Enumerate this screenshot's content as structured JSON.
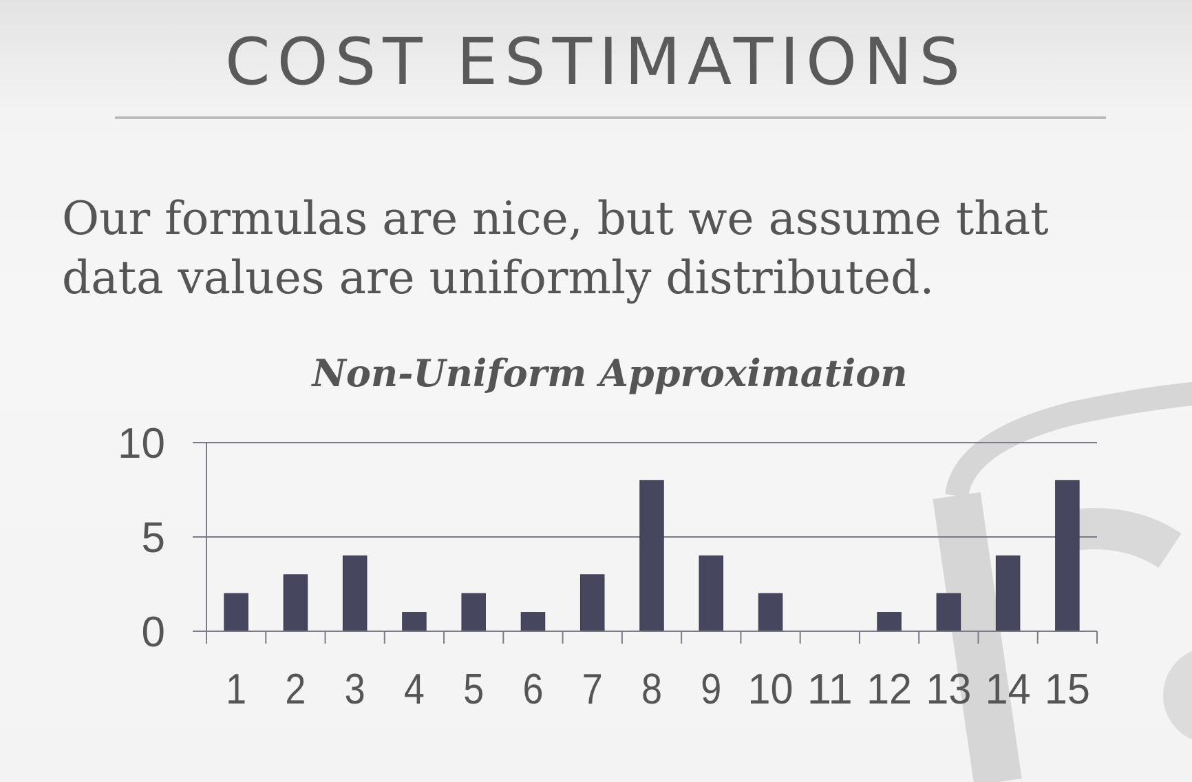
{
  "slide": {
    "title": "COST ESTIMATIONS",
    "body": "Our formulas are nice, but we assume that data values are uniformly distributed."
  },
  "colors": {
    "bar": "#46465e",
    "axis": "#7a7a8a",
    "text": "#555555",
    "rule": "#bdbdbd"
  },
  "chart_data": {
    "type": "bar",
    "title": "Non-Uniform Approximation",
    "xlabel": "",
    "ylabel": "",
    "categories": [
      "1",
      "2",
      "3",
      "4",
      "5",
      "6",
      "7",
      "8",
      "9",
      "10",
      "11",
      "12",
      "13",
      "14",
      "15"
    ],
    "values": [
      2,
      3,
      4,
      1,
      2,
      1,
      3,
      8,
      4,
      2,
      0,
      1,
      2,
      4,
      8
    ],
    "ylim": [
      0,
      10
    ],
    "yticks": [
      0,
      5,
      10
    ],
    "grid": true,
    "legend": "none"
  }
}
